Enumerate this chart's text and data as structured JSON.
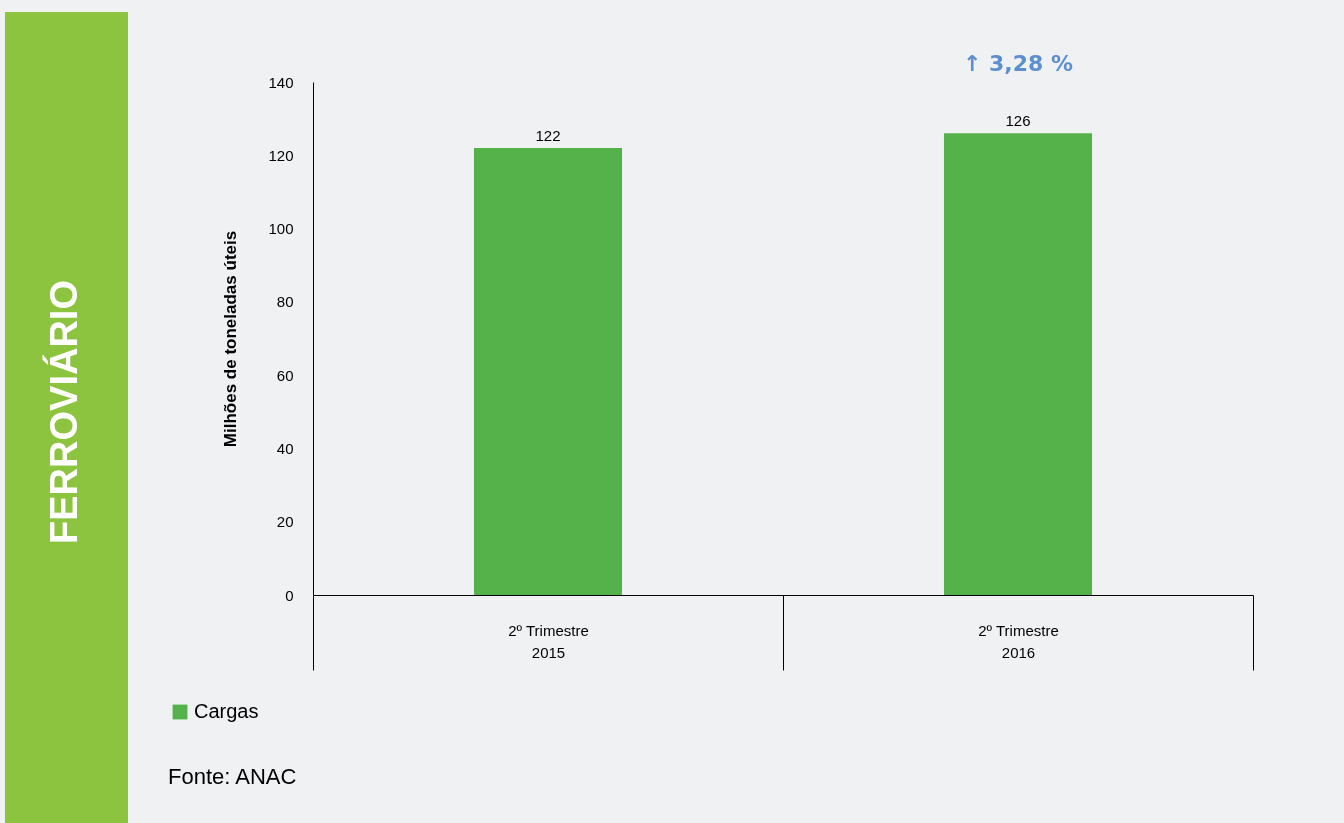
{
  "chart_data": {
    "type": "bar",
    "title": "FERROVIÁRIO",
    "ylabel": "Milhões de toneladas úteis",
    "categories": [
      "2º Trimestre 2015",
      "2º Trimestre 2016"
    ],
    "series": [
      {
        "name": "Cargas",
        "color": "#55b24a",
        "values": [
          122,
          126
        ]
      }
    ],
    "ylim": [
      0,
      140
    ],
    "yticks": [
      0,
      20,
      40,
      60,
      80,
      100,
      120,
      140
    ],
    "grid": false,
    "legend": "bottom left",
    "data_labels": true,
    "annotations": [
      "↑ 3,28 %",
      "Fonte: ANAC"
    ]
  }
}
